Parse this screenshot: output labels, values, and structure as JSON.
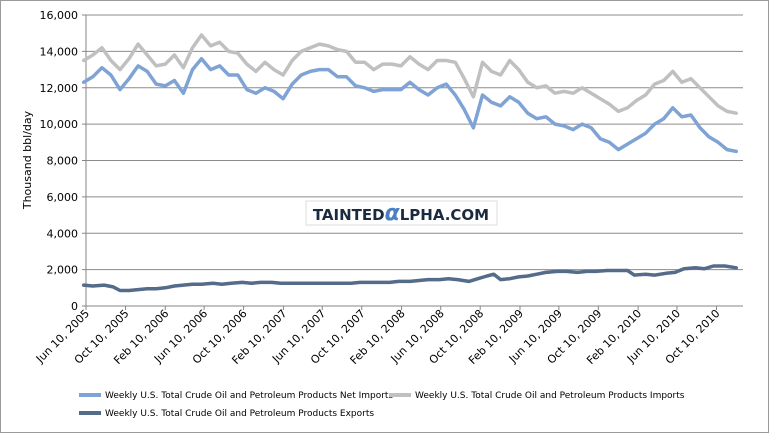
{
  "chart_data": {
    "type": "line",
    "ylabel": "Thousand bbl/day",
    "ylim": [
      0,
      16000
    ],
    "yticks": [
      "0",
      "2,000",
      "4,000",
      "6,000",
      "8,000",
      "10,000",
      "12,000",
      "14,000",
      "16,000"
    ],
    "yticks_values": [
      0,
      2000,
      4000,
      6000,
      8000,
      10000,
      12000,
      14000,
      16000
    ],
    "x_range": [
      "2005-06-10",
      "2010-12-31"
    ],
    "xticks": [
      {
        "date": "2005-06-10",
        "label": "Jun 10, 2005"
      },
      {
        "date": "2005-10-10",
        "label": "Oct 10, 2005"
      },
      {
        "date": "2006-02-10",
        "label": "Feb 10, 2006"
      },
      {
        "date": "2006-06-10",
        "label": "Jun 10, 2006"
      },
      {
        "date": "2006-10-10",
        "label": "Oct 10, 2006"
      },
      {
        "date": "2007-02-10",
        "label": "Feb 10, 2007"
      },
      {
        "date": "2007-06-10",
        "label": "Jun 10, 2007"
      },
      {
        "date": "2007-10-10",
        "label": "Oct 10, 2007"
      },
      {
        "date": "2008-02-10",
        "label": "Feb 10, 2008"
      },
      {
        "date": "2008-06-10",
        "label": "Jun 10, 2008"
      },
      {
        "date": "2008-10-10",
        "label": "Oct 10, 2008"
      },
      {
        "date": "2009-02-10",
        "label": "Feb 10, 2009"
      },
      {
        "date": "2009-06-10",
        "label": "Jun 10, 2009"
      },
      {
        "date": "2009-10-10",
        "label": "Oct 10, 2009"
      },
      {
        "date": "2010-02-10",
        "label": "Feb 10, 2010"
      },
      {
        "date": "2010-06-10",
        "label": "Jun 10, 2010"
      },
      {
        "date": "2010-10-10",
        "label": "Oct 10, 2010"
      }
    ],
    "grid": "horizontal",
    "legend_position": "bottom",
    "series": [
      {
        "name": "Weekly U.S. Total Crude Oil and Petroleum Products Imports",
        "color": "#c0c0c0",
        "points": [
          [
            "2005-06-03",
            13500
          ],
          [
            "2005-07-01",
            13800
          ],
          [
            "2005-07-29",
            14200
          ],
          [
            "2005-08-26",
            13500
          ],
          [
            "2005-09-23",
            13000
          ],
          [
            "2005-10-21",
            13600
          ],
          [
            "2005-11-18",
            14400
          ],
          [
            "2005-12-16",
            13800
          ],
          [
            "2006-01-13",
            13200
          ],
          [
            "2006-02-10",
            13300
          ],
          [
            "2006-03-10",
            13800
          ],
          [
            "2006-04-07",
            13100
          ],
          [
            "2006-05-05",
            14200
          ],
          [
            "2006-06-02",
            14900
          ],
          [
            "2006-06-30",
            14300
          ],
          [
            "2006-07-28",
            14500
          ],
          [
            "2006-08-25",
            14000
          ],
          [
            "2006-09-22",
            13900
          ],
          [
            "2006-10-20",
            13300
          ],
          [
            "2006-11-17",
            12900
          ],
          [
            "2006-12-15",
            13400
          ],
          [
            "2007-01-12",
            13000
          ],
          [
            "2007-02-09",
            12700
          ],
          [
            "2007-03-09",
            13500
          ],
          [
            "2007-04-06",
            14000
          ],
          [
            "2007-05-04",
            14200
          ],
          [
            "2007-06-01",
            14400
          ],
          [
            "2007-06-29",
            14300
          ],
          [
            "2007-07-27",
            14100
          ],
          [
            "2007-08-24",
            14000
          ],
          [
            "2007-09-21",
            13400
          ],
          [
            "2007-10-19",
            13400
          ],
          [
            "2007-11-16",
            13000
          ],
          [
            "2007-12-14",
            13300
          ],
          [
            "2008-01-11",
            13300
          ],
          [
            "2008-02-08",
            13200
          ],
          [
            "2008-03-07",
            13700
          ],
          [
            "2008-04-04",
            13300
          ],
          [
            "2008-05-02",
            13000
          ],
          [
            "2008-05-30",
            13500
          ],
          [
            "2008-06-27",
            13500
          ],
          [
            "2008-07-25",
            13400
          ],
          [
            "2008-08-22",
            12500
          ],
          [
            "2008-09-19",
            11500
          ],
          [
            "2008-10-17",
            13400
          ],
          [
            "2008-11-14",
            12900
          ],
          [
            "2008-12-12",
            12700
          ],
          [
            "2009-01-09",
            13500
          ],
          [
            "2009-02-06",
            13000
          ],
          [
            "2009-03-06",
            12300
          ],
          [
            "2009-04-03",
            12000
          ],
          [
            "2009-05-01",
            12100
          ],
          [
            "2009-05-29",
            11700
          ],
          [
            "2009-06-26",
            11800
          ],
          [
            "2009-07-24",
            11700
          ],
          [
            "2009-08-21",
            12000
          ],
          [
            "2009-09-18",
            11700
          ],
          [
            "2009-10-16",
            11400
          ],
          [
            "2009-11-13",
            11100
          ],
          [
            "2009-12-11",
            10700
          ],
          [
            "2010-01-08",
            10900
          ],
          [
            "2010-02-05",
            11300
          ],
          [
            "2010-03-05",
            11600
          ],
          [
            "2010-04-02",
            12200
          ],
          [
            "2010-04-30",
            12400
          ],
          [
            "2010-05-28",
            12900
          ],
          [
            "2010-06-25",
            12300
          ],
          [
            "2010-07-23",
            12500
          ],
          [
            "2010-08-20",
            12000
          ],
          [
            "2010-09-17",
            11500
          ],
          [
            "2010-10-15",
            11000
          ],
          [
            "2010-11-12",
            10700
          ],
          [
            "2010-12-10",
            10600
          ]
        ]
      },
      {
        "name": "Weekly U.S. Total Crude Oil and Petroleum Products Net Imports",
        "color": "#7ea3d4",
        "points": [
          [
            "2005-06-03",
            12300
          ],
          [
            "2005-07-01",
            12600
          ],
          [
            "2005-07-29",
            13100
          ],
          [
            "2005-08-26",
            12700
          ],
          [
            "2005-09-23",
            11900
          ],
          [
            "2005-10-21",
            12500
          ],
          [
            "2005-11-18",
            13200
          ],
          [
            "2005-12-16",
            12900
          ],
          [
            "2006-01-13",
            12200
          ],
          [
            "2006-02-10",
            12100
          ],
          [
            "2006-03-10",
            12400
          ],
          [
            "2006-04-07",
            11700
          ],
          [
            "2006-05-05",
            13000
          ],
          [
            "2006-06-02",
            13600
          ],
          [
            "2006-06-30",
            13000
          ],
          [
            "2006-07-28",
            13200
          ],
          [
            "2006-08-25",
            12700
          ],
          [
            "2006-09-22",
            12700
          ],
          [
            "2006-10-20",
            11900
          ],
          [
            "2006-11-17",
            11700
          ],
          [
            "2006-12-15",
            12000
          ],
          [
            "2007-01-12",
            11800
          ],
          [
            "2007-02-09",
            11400
          ],
          [
            "2007-03-09",
            12200
          ],
          [
            "2007-04-06",
            12700
          ],
          [
            "2007-05-04",
            12900
          ],
          [
            "2007-06-01",
            13000
          ],
          [
            "2007-06-29",
            13000
          ],
          [
            "2007-07-27",
            12600
          ],
          [
            "2007-08-24",
            12600
          ],
          [
            "2007-09-21",
            12100
          ],
          [
            "2007-10-19",
            12000
          ],
          [
            "2007-11-16",
            11800
          ],
          [
            "2007-12-14",
            11900
          ],
          [
            "2008-01-11",
            11900
          ],
          [
            "2008-02-08",
            11900
          ],
          [
            "2008-03-07",
            12300
          ],
          [
            "2008-04-04",
            11900
          ],
          [
            "2008-05-02",
            11600
          ],
          [
            "2008-05-30",
            12000
          ],
          [
            "2008-06-27",
            12200
          ],
          [
            "2008-07-25",
            11600
          ],
          [
            "2008-08-22",
            10800
          ],
          [
            "2008-09-19",
            9800
          ],
          [
            "2008-10-17",
            11600
          ],
          [
            "2008-11-14",
            11200
          ],
          [
            "2008-12-12",
            11000
          ],
          [
            "2009-01-09",
            11500
          ],
          [
            "2009-02-06",
            11200
          ],
          [
            "2009-03-06",
            10600
          ],
          [
            "2009-04-03",
            10300
          ],
          [
            "2009-05-01",
            10400
          ],
          [
            "2009-05-29",
            10000
          ],
          [
            "2009-06-26",
            9900
          ],
          [
            "2009-07-24",
            9700
          ],
          [
            "2009-08-21",
            10000
          ],
          [
            "2009-09-18",
            9800
          ],
          [
            "2009-10-16",
            9200
          ],
          [
            "2009-11-13",
            9000
          ],
          [
            "2009-12-11",
            8600
          ],
          [
            "2010-01-08",
            8900
          ],
          [
            "2010-02-05",
            9200
          ],
          [
            "2010-03-05",
            9500
          ],
          [
            "2010-04-02",
            10000
          ],
          [
            "2010-04-30",
            10300
          ],
          [
            "2010-05-28",
            10900
          ],
          [
            "2010-06-25",
            10400
          ],
          [
            "2010-07-23",
            10500
          ],
          [
            "2010-08-20",
            9800
          ],
          [
            "2010-09-17",
            9300
          ],
          [
            "2010-10-15",
            9000
          ],
          [
            "2010-11-12",
            8600
          ],
          [
            "2010-12-10",
            8500
          ]
        ]
      },
      {
        "name": "Weekly U.S. Total Crude Oil and Petroleum Products Exports",
        "color": "#556b8a",
        "points": [
          [
            "2005-06-03",
            1150
          ],
          [
            "2005-07-01",
            1100
          ],
          [
            "2005-08-05",
            1150
          ],
          [
            "2005-09-02",
            1050
          ],
          [
            "2005-09-23",
            850
          ],
          [
            "2005-10-21",
            850
          ],
          [
            "2005-11-18",
            900
          ],
          [
            "2005-12-16",
            950
          ],
          [
            "2006-01-13",
            950
          ],
          [
            "2006-02-10",
            1000
          ],
          [
            "2006-03-10",
            1100
          ],
          [
            "2006-04-07",
            1150
          ],
          [
            "2006-05-05",
            1200
          ],
          [
            "2006-06-02",
            1200
          ],
          [
            "2006-07-07",
            1250
          ],
          [
            "2006-08-04",
            1200
          ],
          [
            "2006-09-01",
            1250
          ],
          [
            "2006-10-06",
            1300
          ],
          [
            "2006-11-03",
            1250
          ],
          [
            "2006-12-01",
            1300
          ],
          [
            "2007-01-05",
            1300
          ],
          [
            "2007-02-02",
            1250
          ],
          [
            "2007-03-02",
            1250
          ],
          [
            "2007-04-06",
            1250
          ],
          [
            "2007-05-04",
            1250
          ],
          [
            "2007-06-01",
            1250
          ],
          [
            "2007-07-06",
            1250
          ],
          [
            "2007-08-03",
            1250
          ],
          [
            "2007-09-07",
            1250
          ],
          [
            "2007-10-05",
            1300
          ],
          [
            "2007-11-02",
            1300
          ],
          [
            "2007-12-07",
            1300
          ],
          [
            "2008-01-04",
            1300
          ],
          [
            "2008-02-01",
            1350
          ],
          [
            "2008-03-07",
            1350
          ],
          [
            "2008-04-04",
            1400
          ],
          [
            "2008-05-02",
            1450
          ],
          [
            "2008-06-06",
            1450
          ],
          [
            "2008-07-04",
            1500
          ],
          [
            "2008-08-01",
            1450
          ],
          [
            "2008-09-05",
            1350
          ],
          [
            "2008-10-03",
            1500
          ],
          [
            "2008-10-31",
            1650
          ],
          [
            "2008-11-21",
            1750
          ],
          [
            "2008-12-12",
            1450
          ],
          [
            "2009-01-09",
            1500
          ],
          [
            "2009-02-06",
            1600
          ],
          [
            "2009-03-06",
            1650
          ],
          [
            "2009-04-03",
            1750
          ],
          [
            "2009-05-01",
            1850
          ],
          [
            "2009-06-05",
            1900
          ],
          [
            "2009-07-03",
            1900
          ],
          [
            "2009-08-07",
            1850
          ],
          [
            "2009-09-04",
            1900
          ],
          [
            "2009-10-02",
            1900
          ],
          [
            "2009-11-06",
            1950
          ],
          [
            "2009-12-04",
            1950
          ],
          [
            "2010-01-08",
            1950
          ],
          [
            "2010-01-29",
            1700
          ],
          [
            "2010-03-05",
            1750
          ],
          [
            "2010-04-02",
            1700
          ],
          [
            "2010-05-07",
            1800
          ],
          [
            "2010-06-04",
            1850
          ],
          [
            "2010-07-02",
            2050
          ],
          [
            "2010-08-06",
            2100
          ],
          [
            "2010-09-03",
            2050
          ],
          [
            "2010-10-01",
            2200
          ],
          [
            "2010-11-05",
            2200
          ],
          [
            "2010-12-10",
            2100
          ]
        ]
      }
    ]
  },
  "legend": {
    "items": [
      {
        "label": "Weekly U.S. Total Crude Oil and Petroleum Products Net Imports",
        "color": "#7ea3d4"
      },
      {
        "label": "Weekly U.S. Total Crude Oil and Petroleum Products Imports",
        "color": "#c0c0c0"
      },
      {
        "label": "Weekly U.S. Total Crude Oil and Petroleum Products Exports",
        "color": "#556b8a"
      }
    ]
  },
  "watermark": {
    "text": "TAINTEDALPHA.COM",
    "part1": "TAINTED",
    "glyph": "α",
    "part2": "LPHA.COM"
  }
}
